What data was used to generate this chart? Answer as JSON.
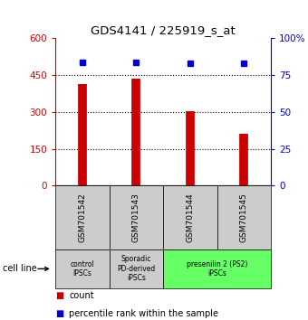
{
  "title": "GDS4141 / 225919_s_at",
  "samples": [
    "GSM701542",
    "GSM701543",
    "GSM701544",
    "GSM701545"
  ],
  "counts": [
    415,
    435,
    305,
    210
  ],
  "percentiles": [
    84,
    84,
    83,
    83
  ],
  "ylim_left": [
    0,
    600
  ],
  "ylim_right": [
    0,
    100
  ],
  "yticks_left": [
    0,
    150,
    300,
    450,
    600
  ],
  "yticks_right": [
    0,
    25,
    50,
    75,
    100
  ],
  "ytick_labels_left": [
    "0",
    "150",
    "300",
    "450",
    "600"
  ],
  "ytick_labels_right": [
    "0",
    "25",
    "50",
    "75",
    "100%"
  ],
  "bar_color": "#cc0000",
  "dot_color": "#0000cc",
  "groups": [
    {
      "label": "control\nIPSCs",
      "start": 0,
      "end": 1,
      "color": "#cccccc"
    },
    {
      "label": "Sporadic\nPD-derived\niPSCs",
      "start": 1,
      "end": 2,
      "color": "#cccccc"
    },
    {
      "label": "presenilin 2 (PS2)\niPSCs",
      "start": 2,
      "end": 4,
      "color": "#66ff66"
    }
  ],
  "cell_line_label": "cell line",
  "legend_count_label": "count",
  "legend_percentile_label": "percentile rank within the sample",
  "background_color": "#ffffff",
  "hline_values": [
    150,
    300,
    450
  ]
}
